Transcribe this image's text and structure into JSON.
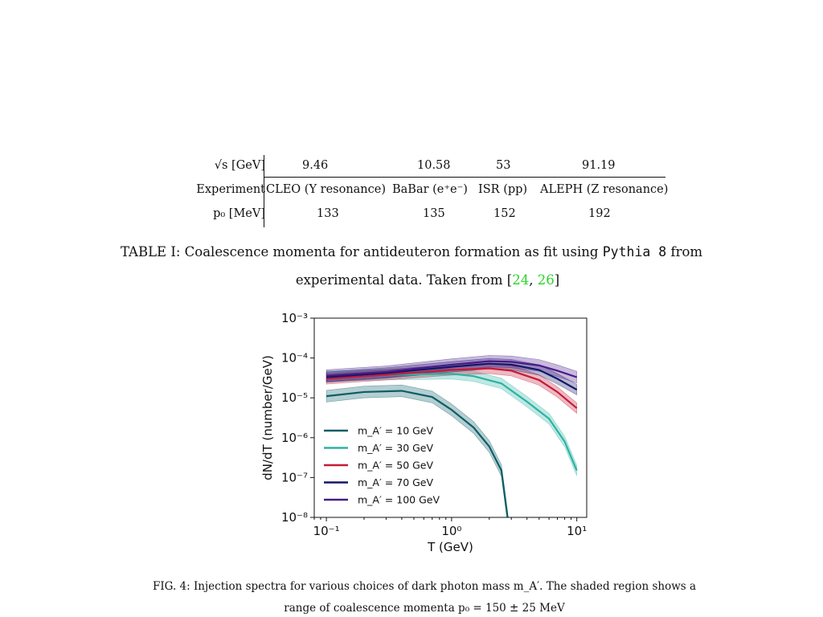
{
  "table": {
    "rows": [
      {
        "header": "√s [GeV]",
        "cells": [
          "9.46",
          "10.58",
          "53",
          "91.19"
        ]
      },
      {
        "header": "Experiment",
        "cells": [
          "CLEO (Υ resonance)",
          "BaBar (e⁺e⁻)",
          "ISR (pp)",
          "ALEPH (Z resonance)"
        ]
      },
      {
        "header": "p₀ [MeV]",
        "cells": [
          "133",
          "135",
          "152",
          "192"
        ]
      }
    ]
  },
  "table_caption": {
    "part1": "TABLE I: Coalescence momenta for antideuteron formation as fit using ",
    "code": "Pythia 8",
    "part2": " from",
    "line2_a": "experimental data.  Taken from [",
    "cite1": "24",
    "sep": ", ",
    "cite2": "26",
    "line2_b": "]"
  },
  "figure_caption": {
    "line1": "FIG. 4: Injection spectra for various choices of dark photon mass m_A′.  The shaded region shows a",
    "line2": "range of coalescence momenta p₀ = 150 ± 25 MeV"
  },
  "chart_data": {
    "type": "line",
    "xlabel": "T (GeV)",
    "ylabel": "dN/dT (number/GeV)",
    "xscale": "log",
    "yscale": "log",
    "xlim": [
      0.08,
      12
    ],
    "ylim": [
      1e-08,
      0.001
    ],
    "xticks": [
      {
        "v": 0.1,
        "label": "10⁻¹"
      },
      {
        "v": 1,
        "label": "10⁰"
      },
      {
        "v": 10,
        "label": "10¹"
      }
    ],
    "yticks": [
      {
        "v": 1e-08,
        "label": "10⁻⁸"
      },
      {
        "v": 1e-07,
        "label": "10⁻⁷"
      },
      {
        "v": 1e-06,
        "label": "10⁻⁶"
      },
      {
        "v": 1e-05,
        "label": "10⁻⁵"
      },
      {
        "v": 0.0001,
        "label": "10⁻⁴"
      },
      {
        "v": 0.001,
        "label": "10⁻³"
      }
    ],
    "legend_position": "lower-left",
    "series": [
      {
        "name": "m_A′ = 10 GeV",
        "color": "#0b5e66",
        "x": [
          0.1,
          0.2,
          0.4,
          0.7,
          1.0,
          1.5,
          2.0,
          2.5,
          2.8
        ],
        "y": [
          1.1e-05,
          1.4e-05,
          1.5e-05,
          1.05e-05,
          5e-06,
          1.8e-06,
          6e-07,
          1.5e-07,
          1e-08
        ],
        "band": 1.4
      },
      {
        "name": "m_A′ = 30 GeV",
        "color": "#2bb3a3",
        "x": [
          0.1,
          0.3,
          1.0,
          1.5,
          2.5,
          4.0,
          6.0,
          8.0,
          10.0
        ],
        "y": [
          3.5e-05,
          3.8e-05,
          4e-05,
          3.5e-05,
          2.3e-05,
          8e-06,
          3e-06,
          8e-07,
          1.5e-07
        ],
        "band": 1.35
      },
      {
        "name": "m_A′ = 50 GeV",
        "color": "#c51b37",
        "x": [
          0.1,
          0.3,
          1.0,
          2.0,
          3.0,
          5.0,
          7.0,
          10.0
        ],
        "y": [
          3e-05,
          3.8e-05,
          5e-05,
          5.5e-05,
          4.8e-05,
          2.8e-05,
          1.4e-05,
          5.5e-06
        ],
        "band": 1.35
      },
      {
        "name": "m_A′ = 70 GeV",
        "color": "#141668",
        "x": [
          0.1,
          0.3,
          1.0,
          2.0,
          3.0,
          5.0,
          7.0,
          10.0
        ],
        "y": [
          3.3e-05,
          4.2e-05,
          6e-05,
          7.2e-05,
          6.8e-05,
          5e-05,
          3e-05,
          1.6e-05
        ],
        "band": 1.35
      },
      {
        "name": "m_A′ = 100 GeV",
        "color": "#4a1a8a",
        "x": [
          0.1,
          0.3,
          1.0,
          2.0,
          3.0,
          5.0,
          7.0,
          10.0
        ],
        "y": [
          3.6e-05,
          4.5e-05,
          6.8e-05,
          8.3e-05,
          8e-05,
          6.5e-05,
          4.8e-05,
          3.3e-05
        ],
        "band": 1.4
      }
    ]
  }
}
